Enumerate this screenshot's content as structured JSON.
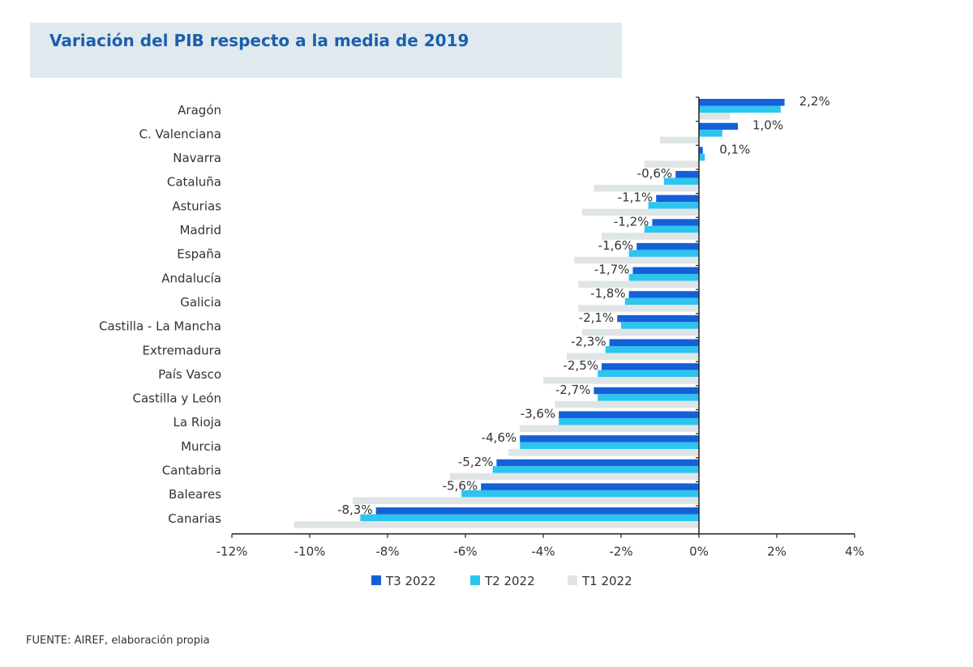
{
  "chart_data": {
    "type": "bar",
    "orientation": "horizontal",
    "title": "Variación del PIB respecto a la media de 2019",
    "categories": [
      "Aragón",
      "C. Valenciana",
      "Navarra",
      "Cataluña",
      "Asturias",
      "Madrid",
      "España",
      "Andalucía",
      "Galicia",
      "Castilla - La Mancha",
      "Extremadura",
      "País Vasco",
      "Castilla y León",
      "La Rioja",
      "Murcia",
      "Cantabria",
      "Baleares",
      "Canarias"
    ],
    "series": [
      {
        "name": "T3 2022",
        "color": "#1560d8",
        "values": [
          2.2,
          1.0,
          0.1,
          -0.6,
          -1.1,
          -1.2,
          -1.6,
          -1.7,
          -1.8,
          -2.1,
          -2.3,
          -2.5,
          -2.7,
          -3.6,
          -4.6,
          -5.2,
          -5.6,
          -8.3
        ],
        "labels": [
          "2,2%",
          "1,0%",
          "0,1%",
          "-0,6%",
          "-1,1%",
          "-1,2%",
          "-1,6%",
          "-1,7%",
          "-1,8%",
          "-2,1%",
          "-2,3%",
          "-2,5%",
          "-2,7%",
          "-3,6%",
          "-4,6%",
          "-5,2%",
          "-5,6%",
          "-8,3%"
        ]
      },
      {
        "name": "T2 2022",
        "color": "#2ec4f0",
        "values": [
          2.1,
          0.6,
          0.15,
          -0.9,
          -1.3,
          -1.4,
          -1.8,
          -1.8,
          -1.9,
          -2.0,
          -2.4,
          -2.6,
          -2.6,
          -3.6,
          -4.6,
          -5.3,
          -6.1,
          -8.7
        ]
      },
      {
        "name": "T1 2022",
        "color": "#dfe4e6",
        "values": [
          0.8,
          -1.0,
          -1.4,
          -2.7,
          -3.0,
          -2.5,
          -3.2,
          -3.1,
          -3.1,
          -3.0,
          -3.4,
          -4.0,
          -3.7,
          -4.6,
          -4.9,
          -6.4,
          -8.9,
          -10.4
        ]
      }
    ],
    "xlim": [
      -12,
      4
    ],
    "xticks": [
      -12,
      -10,
      -8,
      -6,
      -4,
      -2,
      0,
      2,
      4
    ],
    "xtick_labels": [
      "-12%",
      "-10%",
      "-8%",
      "-6%",
      "-4%",
      "-2%",
      "0%",
      "2%",
      "4%"
    ],
    "grid": false,
    "legend_position": "bottom"
  },
  "source": "FUENTE: AIREF, elaboración propia"
}
